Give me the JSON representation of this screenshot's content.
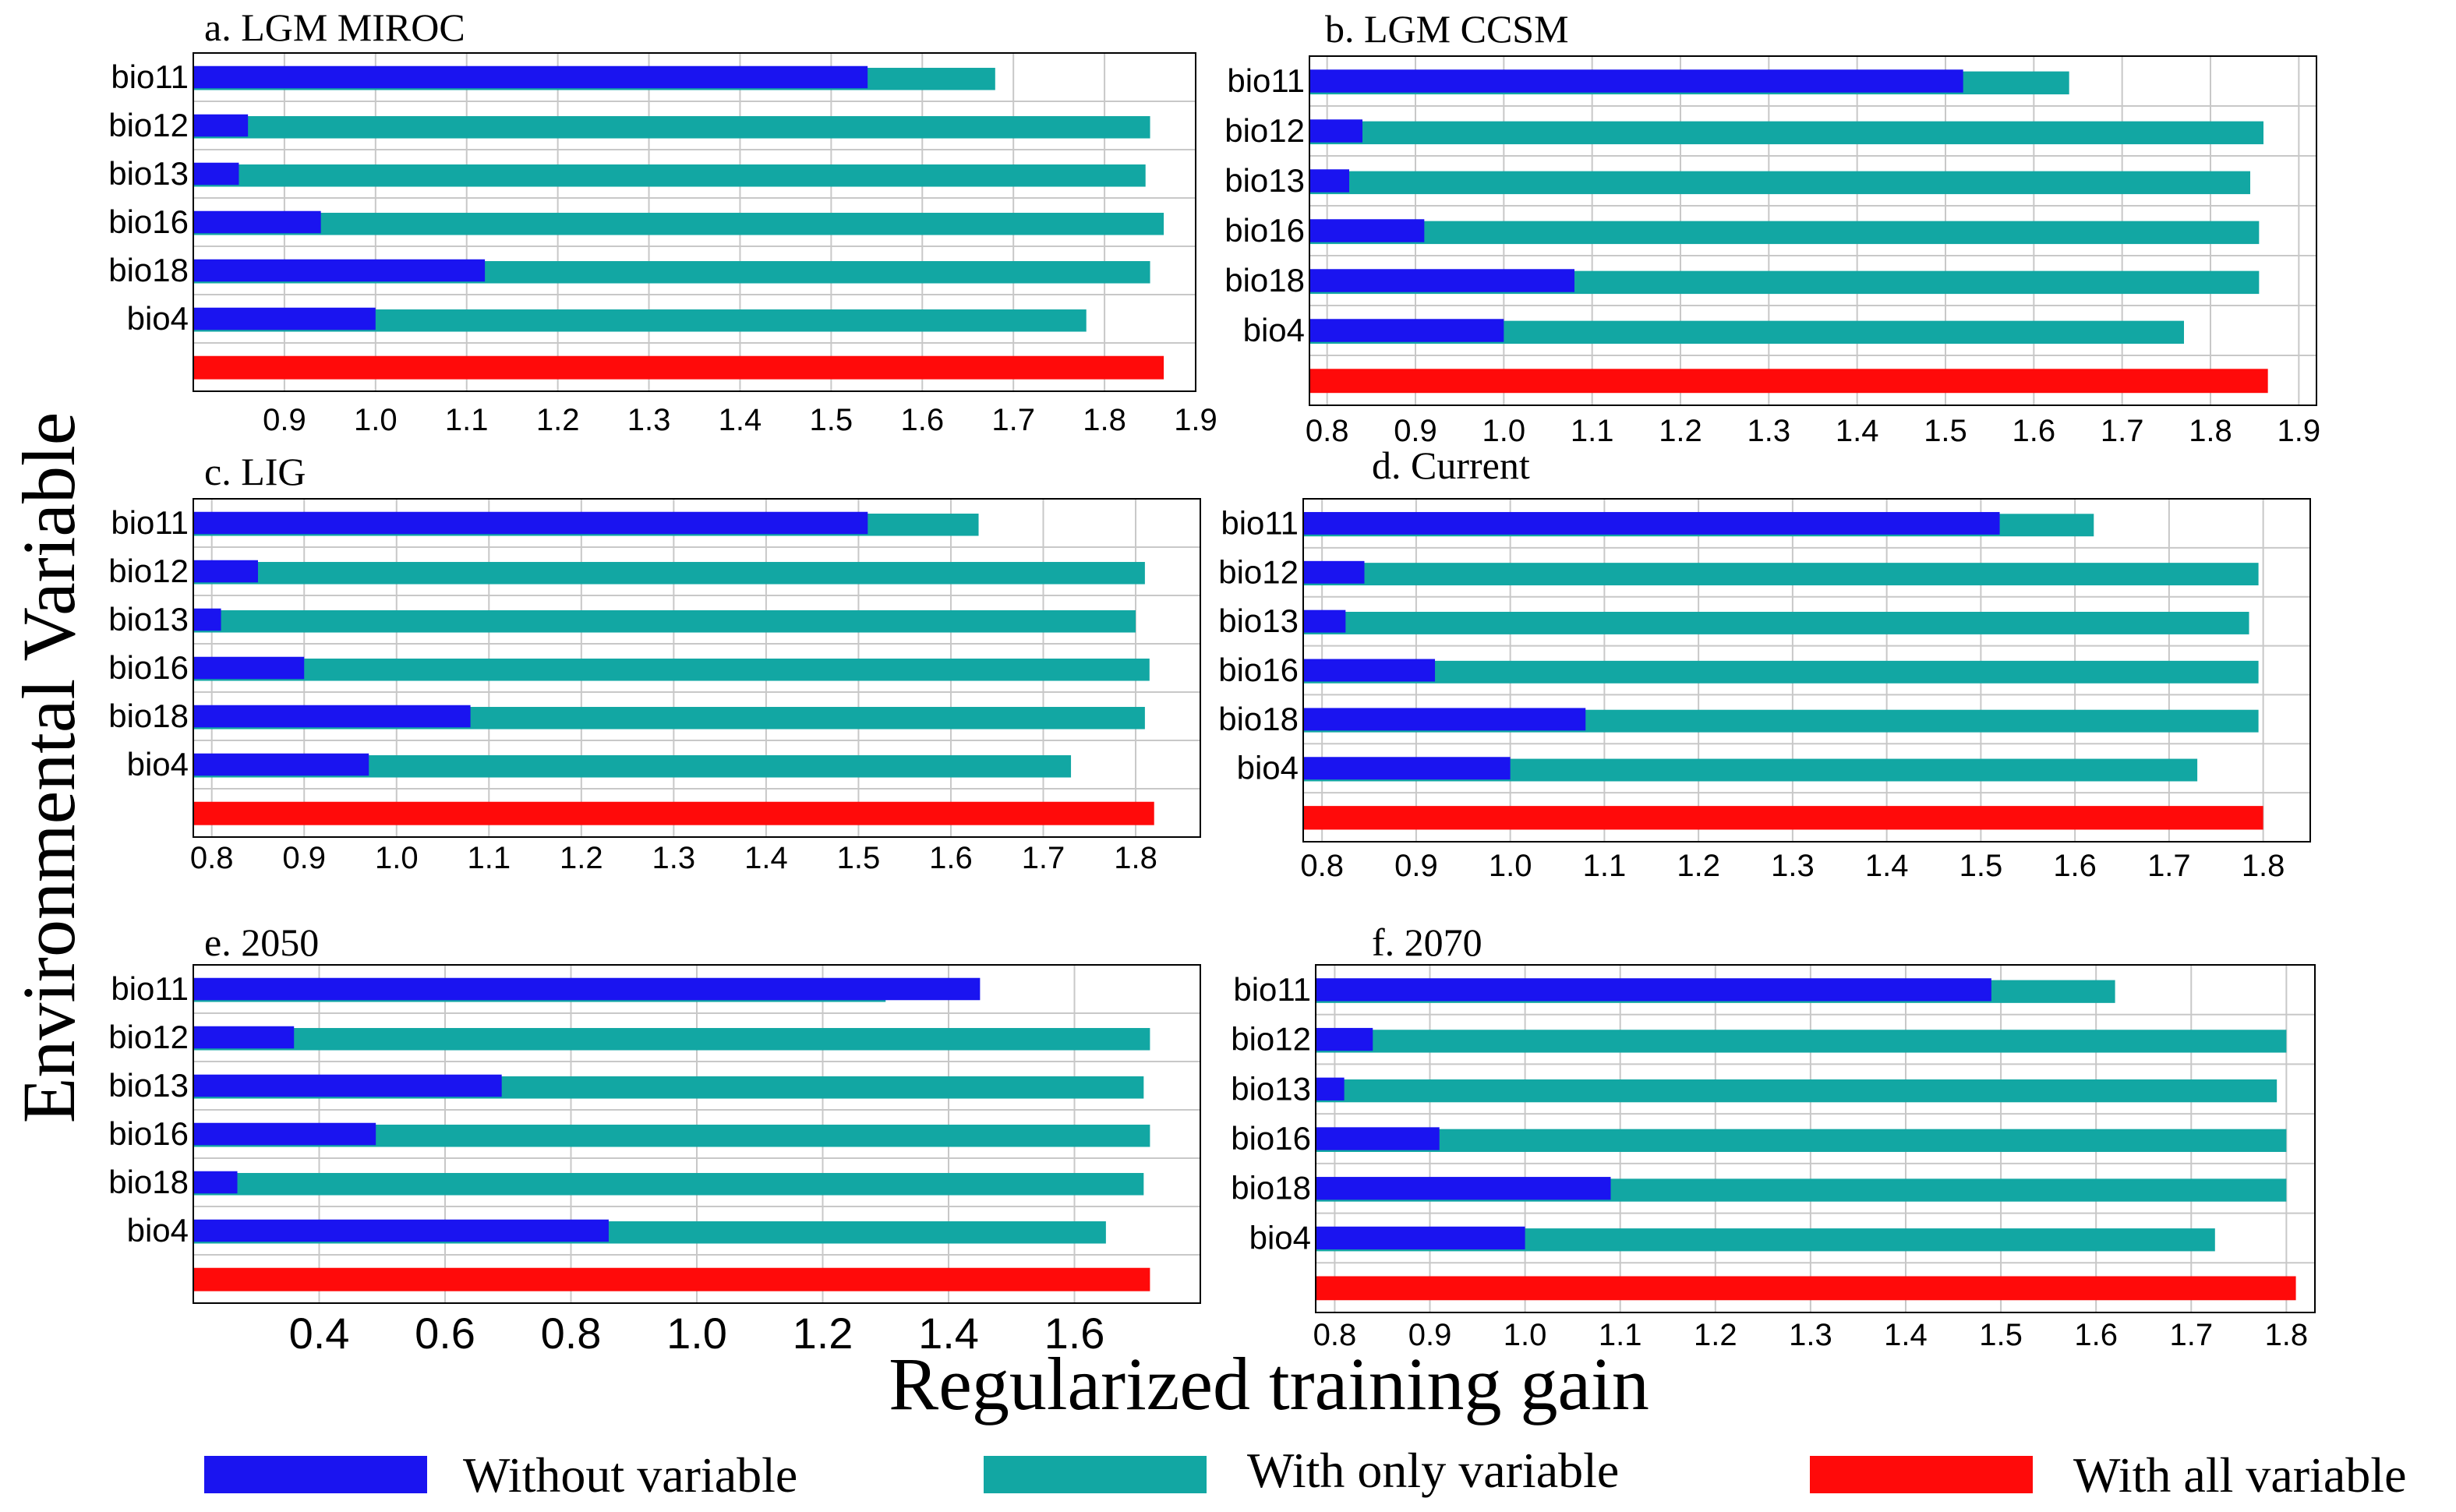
{
  "colors": {
    "without": "#1a14f0",
    "with_only": "#12a7a3",
    "with_all": "#ff0a0a"
  },
  "figure": {
    "ylabel": "Environmental Variable",
    "xlabel": "Regularized training gain",
    "legend": [
      {
        "key": "without",
        "label": "Without variable"
      },
      {
        "key": "with_only",
        "label": "With only variable"
      },
      {
        "key": "with_all",
        "label": "With all variable"
      }
    ]
  },
  "chart_data": [
    {
      "type": "bar",
      "orientation": "horizontal",
      "title": "a. LGM MIROC",
      "categories": [
        "bio11",
        "bio12",
        "bio13",
        "bio16",
        "bio18",
        "bio4"
      ],
      "series": [
        {
          "name": "Without variable",
          "values": [
            1.54,
            0.86,
            0.85,
            0.94,
            1.12,
            1.0
          ]
        },
        {
          "name": "With only variable",
          "values": [
            1.68,
            1.85,
            1.845,
            1.865,
            1.85,
            1.78
          ]
        }
      ],
      "with_all": 1.865,
      "xlim": [
        0.8,
        1.9
      ],
      "xticks": [
        "0.9",
        "1.0",
        "1.1",
        "1.2",
        "1.3",
        "1.4",
        "1.5",
        "1.6",
        "1.7",
        "1.8",
        "1.9"
      ]
    },
    {
      "type": "bar",
      "orientation": "horizontal",
      "title": "b. LGM CCSM",
      "categories": [
        "bio11",
        "bio12",
        "bio13",
        "bio16",
        "bio18",
        "bio4"
      ],
      "series": [
        {
          "name": "Without variable",
          "values": [
            1.52,
            0.84,
            0.825,
            0.91,
            1.08,
            1.0
          ]
        },
        {
          "name": "With only variable",
          "values": [
            1.64,
            1.86,
            1.845,
            1.855,
            1.855,
            1.77
          ]
        }
      ],
      "with_all": 1.865,
      "xlim": [
        0.78,
        1.92
      ],
      "xticks": [
        "0.8",
        "0.9",
        "1.0",
        "1.1",
        "1.2",
        "1.3",
        "1.4",
        "1.5",
        "1.6",
        "1.7",
        "1.8",
        "1.9"
      ]
    },
    {
      "type": "bar",
      "orientation": "horizontal",
      "title": "c. LIG",
      "categories": [
        "bio11",
        "bio12",
        "bio13",
        "bio16",
        "bio18",
        "bio4"
      ],
      "series": [
        {
          "name": "Without variable",
          "values": [
            1.51,
            0.85,
            0.81,
            0.9,
            1.08,
            0.97
          ]
        },
        {
          "name": "With only variable",
          "values": [
            1.63,
            1.81,
            1.8,
            1.815,
            1.81,
            1.73
          ]
        }
      ],
      "with_all": 1.82,
      "xlim": [
        0.78,
        1.87
      ],
      "xticks": [
        "0.8",
        "0.9",
        "1.0",
        "1.1",
        "1.2",
        "1.3",
        "1.4",
        "1.5",
        "1.6",
        "1.7",
        "1.8"
      ]
    },
    {
      "type": "bar",
      "orientation": "horizontal",
      "title": "d. Current",
      "categories": [
        "bio11",
        "bio12",
        "bio13",
        "bio16",
        "bio18",
        "bio4"
      ],
      "series": [
        {
          "name": "Without variable",
          "values": [
            1.52,
            0.845,
            0.825,
            0.92,
            1.08,
            1.0
          ]
        },
        {
          "name": "With only variable",
          "values": [
            1.62,
            1.795,
            1.785,
            1.795,
            1.795,
            1.73
          ]
        }
      ],
      "with_all": 1.8,
      "xlim": [
        0.78,
        1.85
      ],
      "xticks": [
        "0.8",
        "0.9",
        "1.0",
        "1.1",
        "1.2",
        "1.3",
        "1.4",
        "1.5",
        "1.6",
        "1.7",
        "1.8"
      ]
    },
    {
      "type": "bar",
      "orientation": "horizontal",
      "title": "e. 2050",
      "categories": [
        "bio11",
        "bio12",
        "bio13",
        "bio16",
        "bio18",
        "bio4"
      ],
      "series": [
        {
          "name": "Without variable",
          "values": [
            1.45,
            0.36,
            0.69,
            0.49,
            0.27,
            0.86
          ]
        },
        {
          "name": "With only variable",
          "values": [
            1.3,
            1.72,
            1.71,
            1.72,
            1.71,
            1.65
          ]
        }
      ],
      "with_all": 1.72,
      "xlim": [
        0.2,
        1.8
      ],
      "xticks": [
        "0.4",
        "0.6",
        "0.8",
        "1.0",
        "1.2",
        "1.4",
        "1.6"
      ]
    },
    {
      "type": "bar",
      "orientation": "horizontal",
      "title": "f. 2070",
      "categories": [
        "bio11",
        "bio12",
        "bio13",
        "bio16",
        "bio18",
        "bio4"
      ],
      "series": [
        {
          "name": "Without variable",
          "values": [
            1.49,
            0.84,
            0.81,
            0.91,
            1.09,
            1.0
          ]
        },
        {
          "name": "With only variable",
          "values": [
            1.62,
            1.8,
            1.79,
            1.8,
            1.8,
            1.725
          ]
        }
      ],
      "with_all": 1.81,
      "xlim": [
        0.78,
        1.83
      ],
      "xticks": [
        "0.8",
        "0.9",
        "1.0",
        "1.1",
        "1.2",
        "1.3",
        "1.4",
        "1.5",
        "1.6",
        "1.7",
        "1.8"
      ]
    }
  ]
}
